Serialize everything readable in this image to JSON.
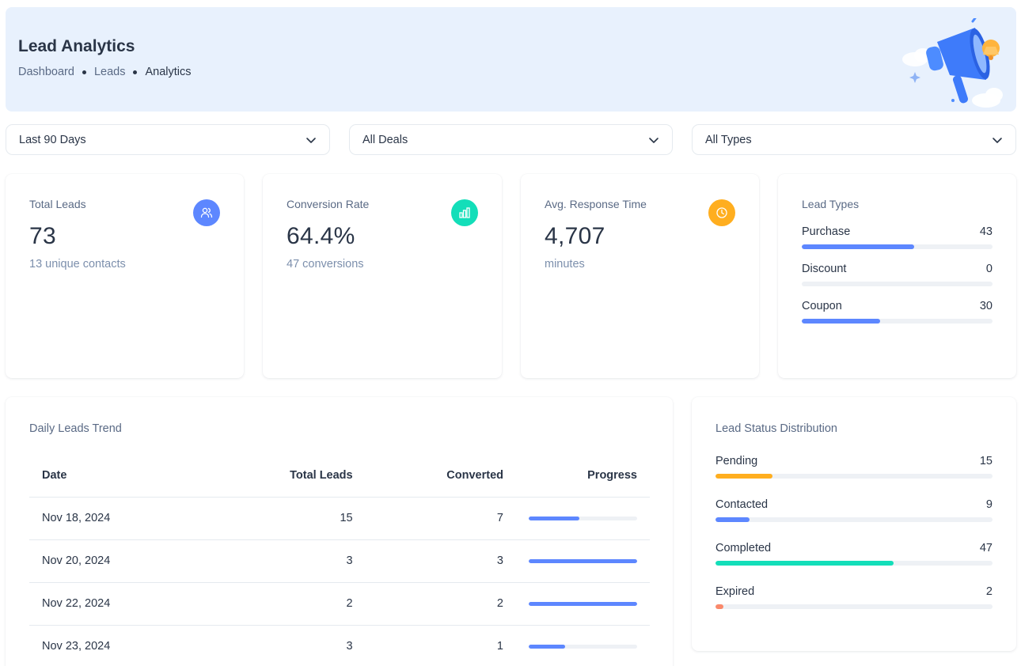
{
  "header": {
    "title": "Lead Analytics",
    "breadcrumbs": [
      "Dashboard",
      "Leads",
      "Analytics"
    ],
    "illustration": "megaphone-illustration"
  },
  "filters": [
    {
      "value": "Last 90 Days",
      "icon": "chevron-down-icon"
    },
    {
      "value": "All Deals",
      "icon": "chevron-down-icon"
    },
    {
      "value": "All Types",
      "icon": "chevron-down-icon"
    }
  ],
  "stats": {
    "total_leads": {
      "label": "Total Leads",
      "value": "73",
      "sub": "13 unique contacts",
      "icon": "users-icon",
      "color": "#5d87ff"
    },
    "conversion_rate": {
      "label": "Conversion Rate",
      "value": "64.4%",
      "sub": "47 conversions",
      "icon": "bar-chart-icon",
      "color": "#13deb9"
    },
    "response_time": {
      "label": "Avg. Response Time",
      "value": "4,707",
      "sub": "minutes",
      "icon": "clock-icon",
      "color": "#ffae1f"
    }
  },
  "lead_types": {
    "title": "Lead Types",
    "max": 73,
    "items": [
      {
        "label": "Purchase",
        "count": "43",
        "value": 43,
        "color": "#5d87ff"
      },
      {
        "label": "Discount",
        "count": "0",
        "value": 0,
        "color": "#5d87ff"
      },
      {
        "label": "Coupon",
        "count": "30",
        "value": 30,
        "color": "#5d87ff"
      }
    ]
  },
  "daily_trend": {
    "title": "Daily Leads Trend",
    "columns": [
      "Date",
      "Total Leads",
      "Converted",
      "Progress"
    ],
    "rows": [
      {
        "date": "Nov 18, 2024",
        "total": "15",
        "converted": "7",
        "progress": 0.467
      },
      {
        "date": "Nov 20, 2024",
        "total": "3",
        "converted": "3",
        "progress": 1.0
      },
      {
        "date": "Nov 22, 2024",
        "total": "2",
        "converted": "2",
        "progress": 1.0
      },
      {
        "date": "Nov 23, 2024",
        "total": "3",
        "converted": "1",
        "progress": 0.333
      }
    ]
  },
  "status_distribution": {
    "title": "Lead Status Distribution",
    "max": 73,
    "items": [
      {
        "label": "Pending",
        "count": "15",
        "value": 15,
        "color": "#ffae1f"
      },
      {
        "label": "Contacted",
        "count": "9",
        "value": 9,
        "color": "#5d87ff"
      },
      {
        "label": "Completed",
        "count": "47",
        "value": 47,
        "color": "#13deb9"
      },
      {
        "label": "Expired",
        "count": "2",
        "value": 2,
        "color": "#fa896b"
      }
    ]
  }
}
